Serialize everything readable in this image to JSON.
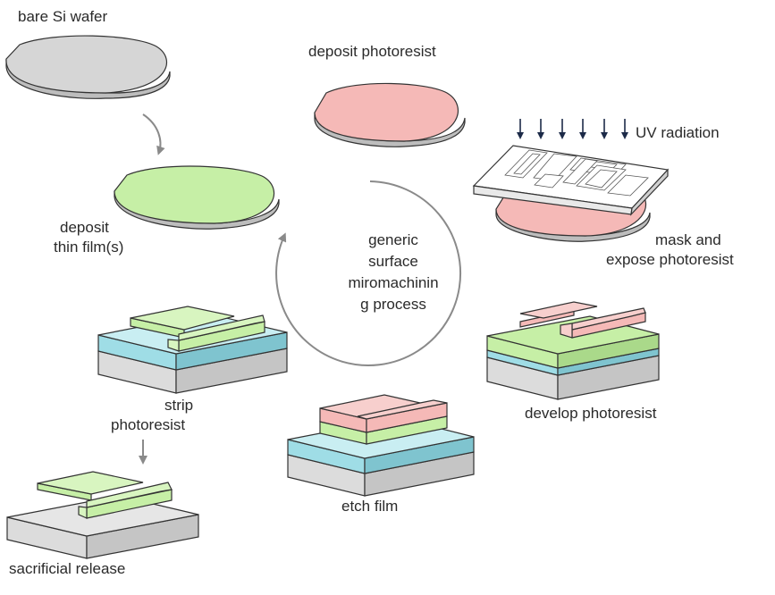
{
  "labels": {
    "bare_wafer": "bare Si wafer",
    "deposit_photoresist": "deposit photoresist",
    "uv_radiation": "UV radiation",
    "deposit_thin_film_line1": "deposit",
    "deposit_thin_film_line2": "thin film(s)",
    "mask_expose_line1": "mask and",
    "mask_expose_line2": "expose photoresist",
    "cycle_line1": "generic",
    "cycle_line2": "surface",
    "cycle_line3": "miromachinin",
    "cycle_line4": "g process",
    "strip_line1": "strip",
    "strip_line2": "photoresist",
    "develop_photoresist": "develop photoresist",
    "etch_film": "etch film",
    "sacrificial_release": "sacrificial release"
  },
  "colors": {
    "wafer_gray": "#d6d6d6",
    "thin_film_green": "#c6efa6",
    "photoresist_pink": "#f5b9b7",
    "sacrificial_blue": "#9fdde6",
    "substrate_gray": "#dcdcdc",
    "outline": "#333333",
    "arrow_gray": "#8a8a8a",
    "uv_arrow": "#1c2a48"
  }
}
